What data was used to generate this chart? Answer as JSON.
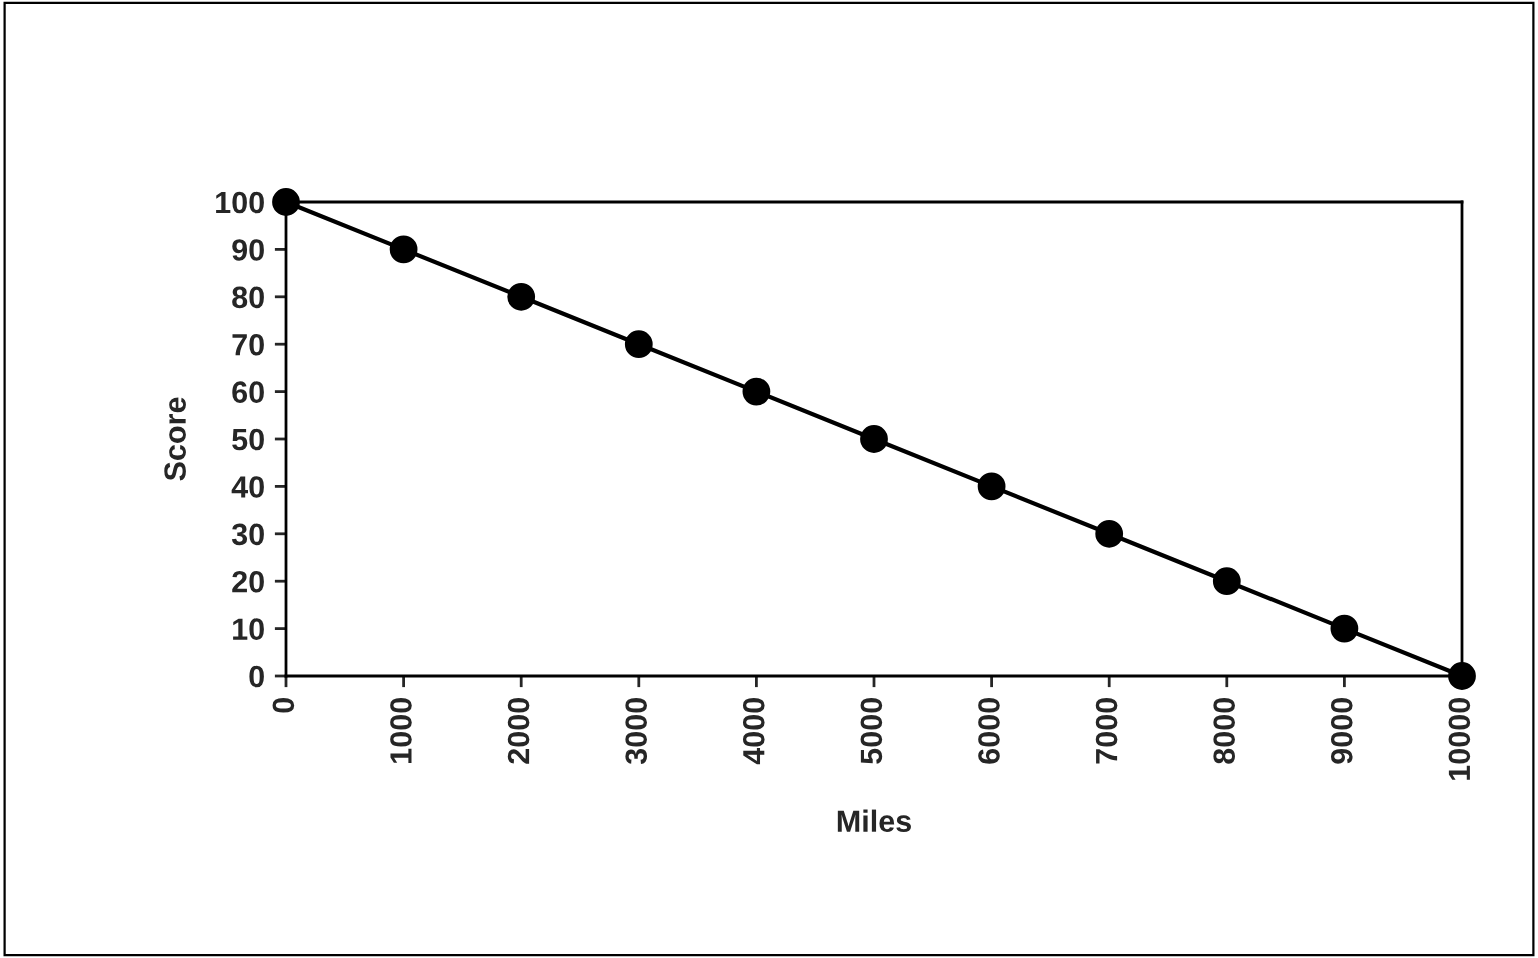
{
  "chart_data": {
    "type": "line",
    "xlabel": "Miles",
    "ylabel": "Score",
    "x": [
      0,
      1000,
      2000,
      3000,
      4000,
      5000,
      6000,
      7000,
      8000,
      9000,
      10000
    ],
    "series": [
      {
        "color": "#000000",
        "values": [
          100,
          90,
          80,
          70,
          60,
          50,
          40,
          30,
          20,
          10,
          0
        ]
      }
    ],
    "xlim": [
      0,
      10000
    ],
    "xticks": [
      0,
      1000,
      2000,
      3000,
      4000,
      5000,
      6000,
      7000,
      8000,
      9000,
      10000
    ],
    "ylim": [
      0,
      100
    ],
    "yticks": [
      0,
      10,
      20,
      30,
      40,
      50,
      60,
      70,
      80,
      90,
      100
    ],
    "marker": "circle",
    "line_style": "solid",
    "grid": false,
    "legend": false
  }
}
